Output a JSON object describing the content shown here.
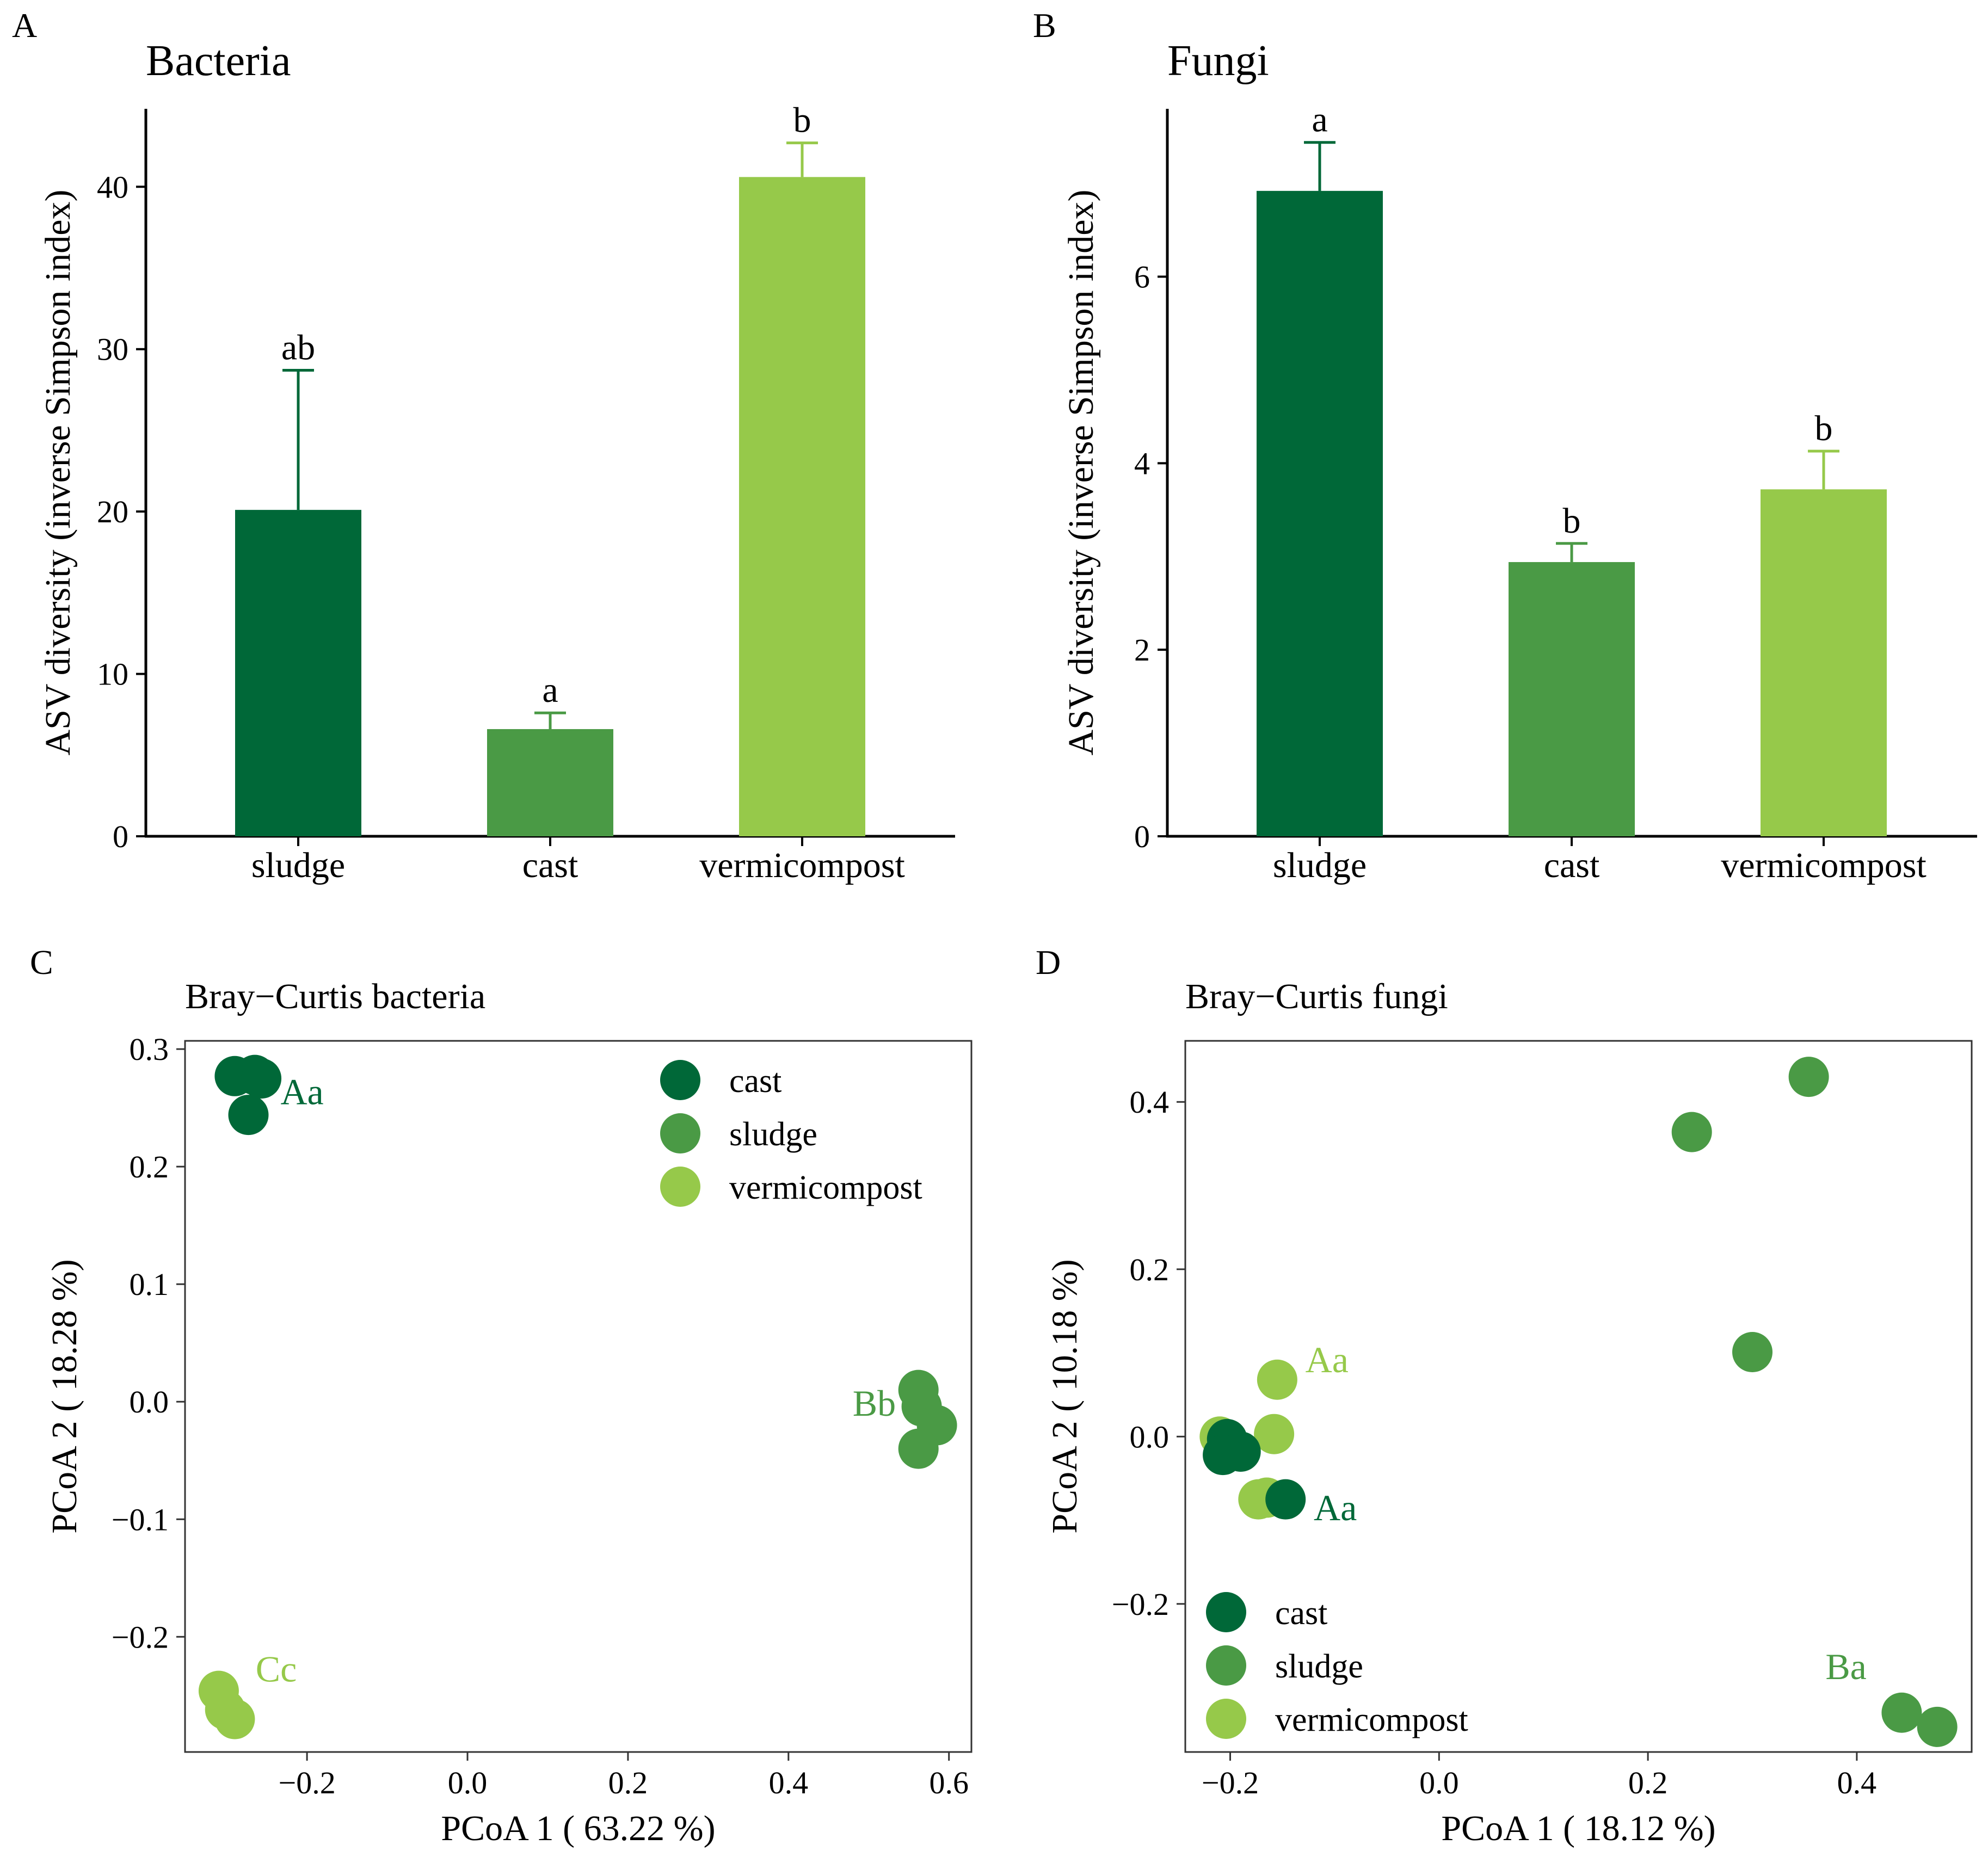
{
  "colors": {
    "cast": "#006838",
    "sludge": "#4a9a45",
    "vermicompost": "#96c94a"
  },
  "chart_data": [
    {
      "id": "bacteria",
      "panel": "A",
      "type": "bar",
      "title": "Bacteria",
      "xlabel": "",
      "ylabel": "ASV diversity (inverse Simpson index)",
      "categories": [
        "sludge",
        "cast",
        "vermicompost"
      ],
      "values": [
        20.1,
        6.6,
        40.6
      ],
      "errors": [
        8.6,
        1.0,
        2.1
      ],
      "bar_colors": [
        "cast",
        "sludge",
        "vermicompost"
      ],
      "sig_letters": [
        "ab",
        "a",
        "b"
      ],
      "ylim": [
        0,
        44.8
      ],
      "yticks": [
        0,
        10,
        20,
        30,
        40
      ],
      "ytick_labels": [
        "0",
        "10",
        "20",
        "30",
        "40"
      ]
    },
    {
      "id": "fungi",
      "panel": "B",
      "type": "bar",
      "title": "Fungi",
      "xlabel": "",
      "ylabel": "ASV diversity (inverse Simpson index)",
      "categories": [
        "sludge",
        "cast",
        "vermicompost"
      ],
      "values": [
        6.92,
        2.94,
        3.72
      ],
      "errors": [
        0.52,
        0.2,
        0.41
      ],
      "bar_colors": [
        "cast",
        "sludge",
        "vermicompost"
      ],
      "sig_letters": [
        "a",
        "b",
        "b"
      ],
      "ylim": [
        0,
        7.8
      ],
      "yticks": [
        0,
        2,
        4,
        6
      ],
      "ytick_labels": [
        "0",
        "2",
        "4",
        "6"
      ]
    },
    {
      "id": "bray-curtis-bacteria",
      "panel": "C",
      "type": "scatter",
      "title": "Bray−Curtis bacteria",
      "xlabel": "PCoA 1 ( 63.22 %)",
      "ylabel": "PCoA 2 ( 18.28 %)",
      "xlim": [
        -0.352,
        0.628
      ],
      "ylim": [
        -0.298,
        0.307
      ],
      "xticks": [
        -0.2,
        0.0,
        0.2,
        0.4,
        0.6
      ],
      "xtick_labels": [
        "−0.2",
        "0.0",
        "0.2",
        "0.4",
        "0.6"
      ],
      "yticks": [
        -0.2,
        -0.1,
        0.0,
        0.1,
        0.2,
        0.3
      ],
      "ytick_labels": [
        "−0.2",
        "−0.1",
        "0.0",
        "0.1",
        "0.2",
        "0.3"
      ],
      "legend": {
        "position": "top-right",
        "entries": [
          "cast",
          "sludge",
          "vermicompost"
        ]
      },
      "series": [
        {
          "name": "cast",
          "color": "cast",
          "points": [
            [
              -0.29,
              0.277
            ],
            [
              -0.265,
              0.278
            ],
            [
              -0.257,
              0.275
            ],
            [
              -0.273,
              0.244
            ]
          ]
        },
        {
          "name": "sludge",
          "color": "sludge",
          "points": [
            [
              0.562,
              0.01
            ],
            [
              0.566,
              -0.004
            ],
            [
              0.585,
              -0.02
            ],
            [
              0.562,
              -0.04
            ]
          ]
        },
        {
          "name": "vermicompost",
          "color": "vermicompost",
          "points": [
            [
              -0.31,
              -0.246
            ],
            [
              -0.302,
              -0.262
            ],
            [
              -0.29,
              -0.27
            ]
          ]
        }
      ],
      "group_labels": [
        {
          "text": "Aa",
          "color": "cast",
          "at": [
            -0.233,
            0.253
          ]
        },
        {
          "text": "Bb",
          "color": "sludge",
          "at": [
            0.48,
            -0.012
          ]
        },
        {
          "text": "Cc",
          "color": "vermicompost",
          "at": [
            -0.264,
            -0.238
          ]
        }
      ]
    },
    {
      "id": "bray-curtis-fungi",
      "panel": "D",
      "type": "scatter",
      "title": "Bray−Curtis fungi",
      "xlabel": "PCoA 1 ( 18.12 %)",
      "ylabel": "PCoA 2 ( 10.18 %)",
      "xlim": [
        -0.243,
        0.51
      ],
      "ylim": [
        -0.377,
        0.473
      ],
      "xticks": [
        -0.2,
        0.0,
        0.2,
        0.4
      ],
      "xtick_labels": [
        "−0.2",
        "0.0",
        "0.2",
        "0.4"
      ],
      "yticks": [
        -0.2,
        0.0,
        0.2,
        0.4
      ],
      "ytick_labels": [
        "−0.2",
        "0.0",
        "0.2",
        "0.4"
      ],
      "legend": {
        "position": "bottom-left",
        "entries": [
          "cast",
          "sludge",
          "vermicompost"
        ]
      },
      "series": [
        {
          "name": "vermicompost",
          "color": "vermicompost",
          "points": [
            [
              -0.21,
              0.0
            ],
            [
              -0.155,
              0.068
            ],
            [
              -0.158,
              0.003
            ],
            [
              -0.173,
              -0.075
            ],
            [
              -0.165,
              -0.073
            ]
          ]
        },
        {
          "name": "cast",
          "color": "cast",
          "points": [
            [
              -0.203,
              -0.003
            ],
            [
              -0.19,
              -0.018
            ],
            [
              -0.207,
              -0.022
            ],
            [
              -0.147,
              -0.075
            ]
          ]
        },
        {
          "name": "sludge",
          "color": "sludge",
          "points": [
            [
              0.354,
              0.43
            ],
            [
              0.242,
              0.364
            ],
            [
              0.3,
              0.101
            ],
            [
              0.443,
              -0.33
            ],
            [
              0.477,
              -0.347
            ]
          ]
        }
      ],
      "group_labels": [
        {
          "text": "Aa",
          "color": "vermicompost",
          "at": [
            -0.128,
            0.077
          ]
        },
        {
          "text": "Aa",
          "color": "cast",
          "at": [
            -0.12,
            -0.1
          ]
        },
        {
          "text": "Ba",
          "color": "sludge",
          "at": [
            0.37,
            -0.29
          ]
        }
      ]
    }
  ]
}
